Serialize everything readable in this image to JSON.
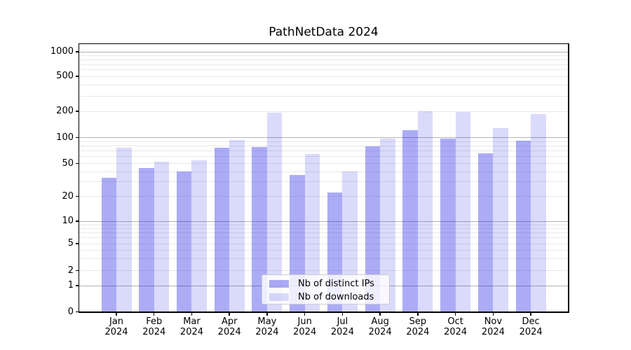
{
  "chart_data": {
    "type": "bar",
    "title": "PathNetData 2024",
    "categories": [
      "Jan",
      "Feb",
      "Mar",
      "Apr",
      "May",
      "Jun",
      "Jul",
      "Aug",
      "Sep",
      "Oct",
      "Nov",
      "Dec"
    ],
    "year_label": "2024",
    "series": [
      {
        "name": "Nb of distinct IPs",
        "color": "rgba(25,25,230,0.36)",
        "values": [
          33,
          44,
          40,
          76,
          77,
          36,
          22,
          78,
          120,
          96,
          65,
          91
        ]
      },
      {
        "name": "Nb of downloads",
        "color": "rgba(25,25,230,0.16)",
        "values": [
          75,
          52,
          54,
          93,
          193,
          64,
          40,
          97,
          200,
          196,
          128,
          186
        ]
      }
    ],
    "xlabel": "",
    "ylabel": "",
    "yscale": "symlog",
    "ylim": [
      0,
      1200
    ],
    "y_ticks": [
      0,
      1,
      2,
      5,
      10,
      20,
      50,
      100,
      200,
      500,
      1000
    ],
    "y_major_gridlines": [
      1,
      10,
      100,
      1000
    ],
    "y_minor_gridlines": [
      2,
      3,
      4,
      5,
      6,
      7,
      8,
      9,
      20,
      30,
      40,
      50,
      60,
      70,
      80,
      90,
      200,
      300,
      400,
      500,
      600,
      700,
      800,
      900
    ],
    "grid": true,
    "legend_position": "lower center"
  },
  "colors": {
    "background": "#ffffff",
    "bar_distinct_ips": "rgba(25,25,230,0.36)",
    "bar_downloads": "rgba(25,25,230,0.16)",
    "major_grid": "#b2b2b2",
    "minor_grid": "#e8e8e8",
    "spine": "#000000",
    "text": "#000000",
    "legend_border": "#cccccc"
  }
}
